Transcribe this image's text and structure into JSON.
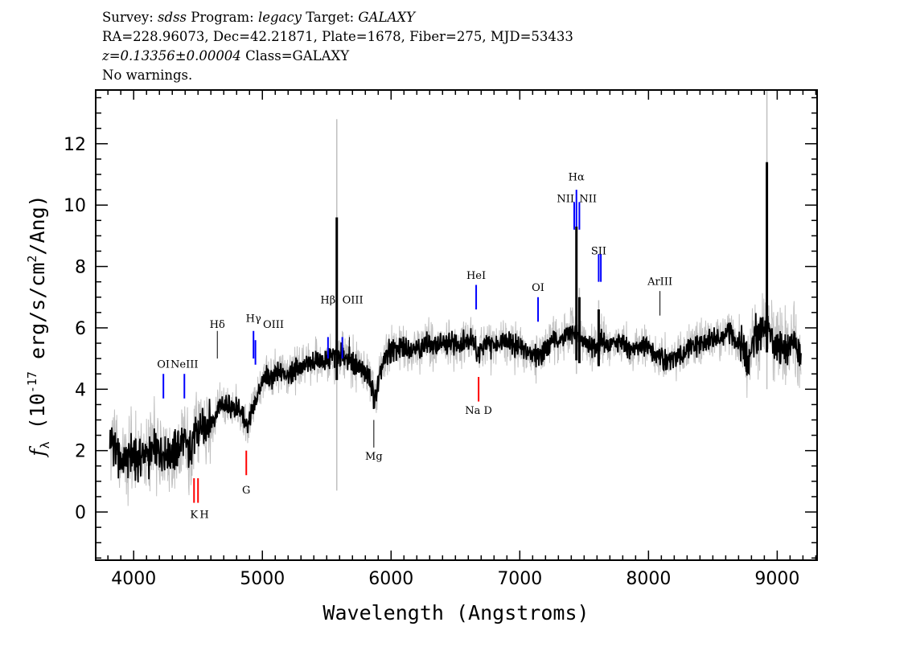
{
  "header": {
    "survey_label": "Survey:",
    "survey": "sdss",
    "program_label": "Program:",
    "program": "legacy",
    "target_label": "Target:",
    "target": "GALAXY",
    "line2": "RA=228.96073, Dec=42.21871, Plate=1678, Fiber=275, MJD=53433",
    "redshift": "z=0.13356±0.00004",
    "class": "Class=GALAXY",
    "warnings": "No warnings."
  },
  "chart_data": {
    "type": "line",
    "xlabel": "Wavelength (Angstroms)",
    "ylabel_main": "f",
    "ylabel_sub": "λ",
    "ylabel_rest": " (10",
    "ylabel_exp": "-17",
    "ylabel_units": " erg/s/cm",
    "ylabel_exp2": "2",
    "ylabel_end": "/Ang)",
    "xlim": [
      3705,
      9310
    ],
    "ylim": [
      -1.57,
      13.75
    ],
    "xticks": [
      4000,
      5000,
      6000,
      7000,
      8000,
      9000
    ],
    "yticks": [
      0,
      2,
      4,
      6,
      8,
      10,
      12
    ],
    "grid": false,
    "colors": {
      "flux": "#000000",
      "raw": "#c0c0c0",
      "emission": "#0000ff",
      "absorption": "#ff0000",
      "other": "#000000"
    },
    "flux_wavelength_start": 3825,
    "flux_wavelength_step": 50,
    "flux": [
      2.4,
      1.8,
      1.6,
      1.9,
      1.7,
      1.9,
      1.8,
      2.0,
      2.1,
      1.9,
      2.0,
      2.2,
      2.1,
      2.4,
      2.7,
      3.0,
      3.1,
      3.5,
      3.4,
      3.4,
      3.4,
      2.8,
      3.2,
      4.0,
      4.4,
      4.3,
      4.5,
      4.6,
      4.5,
      4.8,
      4.7,
      4.8,
      5.0,
      4.8,
      5.0,
      5.1,
      5.1,
      5.0,
      4.8,
      4.6,
      4.4,
      3.6,
      4.6,
      5.2,
      5.3,
      5.3,
      5.4,
      5.4,
      5.3,
      5.5,
      5.4,
      5.5,
      5.4,
      5.5,
      5.5,
      5.6,
      5.8,
      5.1,
      5.4,
      5.4,
      5.5,
      5.8,
      5.5,
      5.4,
      5.3,
      5.2,
      5.1,
      5.2,
      5.4,
      5.7,
      5.6,
      5.8,
      5.8,
      5.6,
      5.5,
      5.4,
      5.6,
      5.4,
      5.5,
      5.5,
      5.3,
      5.3,
      5.4,
      5.4,
      5.2,
      5.1,
      4.9,
      4.9,
      5.0,
      5.2,
      5.3,
      5.4,
      5.5,
      5.6,
      5.7,
      5.6,
      5.8,
      5.7,
      5.4,
      4.8,
      5.8,
      6.0,
      6.0,
      5.6,
      5.5,
      5.4,
      5.6,
      5.1
    ],
    "peaks": [
      {
        "wavelength": 5578,
        "flux": 9.6,
        "raw_max": 12.8,
        "raw_min": 0.7
      },
      {
        "wavelength": 7440,
        "flux": 9.3,
        "raw_max": 9.6,
        "raw_min": 4.5
      },
      {
        "wavelength": 7463,
        "flux": 7.0,
        "raw_max": 7.3,
        "raw_min": 5.0
      },
      {
        "wavelength": 7613,
        "flux": 6.6,
        "raw_max": 6.9,
        "raw_min": 5.0
      },
      {
        "wavelength": 8920,
        "flux": 11.4,
        "raw_max": 13.75,
        "raw_min": 4.0
      }
    ],
    "lines": [
      {
        "label": "OI",
        "wavelength": 4231,
        "type": "emission",
        "y0": 3.7,
        "y1": 4.5,
        "label_y": 4.7,
        "anchor": "middle"
      },
      {
        "label": "NeIII",
        "wavelength": 4394,
        "type": "emission",
        "y0": 3.7,
        "y1": 4.5,
        "label_y": 4.7,
        "anchor": "middle"
      },
      {
        "label": "K",
        "wavelength": 4469,
        "type": "absorption",
        "y0": 0.3,
        "y1": 1.1,
        "label_y": -0.2,
        "anchor": "middle"
      },
      {
        "label": "H",
        "wavelength": 4500,
        "type": "absorption",
        "y0": 0.3,
        "y1": 1.1,
        "label_y": -0.2,
        "anchor": "middle"
      },
      {
        "label": "Hδ",
        "wavelength": 4650,
        "type": "other",
        "y0": 5.0,
        "y1": 5.9,
        "label_y": 6.0,
        "anchor": "middle"
      },
      {
        "label": "G",
        "wavelength": 4875,
        "type": "absorption",
        "y0": 1.2,
        "y1": 2.0,
        "label_y": 0.6,
        "anchor": "middle"
      },
      {
        "label": "Hγ",
        "wavelength": 4931,
        "type": "emission",
        "y0": 5.0,
        "y1": 5.9,
        "label_y": 6.2,
        "anchor": "middle"
      },
      {
        "label": "OIII",
        "wavelength": 4946,
        "type": "emission",
        "y0": 4.8,
        "y1": 5.6,
        "label_y": 6.0,
        "anchor": "start"
      },
      {
        "label": "Hβ",
        "wavelength": 5510,
        "type": "emission",
        "y0": 5.0,
        "y1": 5.7,
        "label_y": 6.8,
        "anchor": "middle"
      },
      {
        "label": "OIII",
        "wavelength": 5621,
        "type": "emission",
        "y0": 5.0,
        "y1": 5.7,
        "label_y": 6.8,
        "anchor": "start"
      },
      {
        "label": "",
        "wavelength": 5676,
        "type": "other",
        "y0": 5.0,
        "y1": 5.7,
        "label_y": 6.8,
        "anchor": "middle"
      },
      {
        "label": "Mg",
        "wavelength": 5866,
        "type": "other",
        "y0": 2.1,
        "y1": 3.0,
        "label_y": 1.7,
        "anchor": "middle"
      },
      {
        "label": "HeI",
        "wavelength": 6661,
        "type": "emission",
        "y0": 6.6,
        "y1": 7.4,
        "label_y": 7.6,
        "anchor": "middle"
      },
      {
        "label": "Na D",
        "wavelength": 6680,
        "type": "absorption",
        "y0": 3.6,
        "y1": 4.4,
        "label_y": 3.2,
        "anchor": "middle"
      },
      {
        "label": "OI",
        "wavelength": 7142,
        "type": "emission",
        "y0": 6.2,
        "y1": 7.0,
        "label_y": 7.2,
        "anchor": "middle"
      },
      {
        "label": "NII",
        "wavelength": 7423,
        "type": "emission",
        "y0": 9.2,
        "y1": 10.1,
        "label_y": 10.1,
        "anchor": "end"
      },
      {
        "label": "Hα",
        "wavelength": 7440,
        "type": "emission",
        "y0": 9.3,
        "y1": 10.5,
        "label_y": 10.8,
        "anchor": "middle"
      },
      {
        "label": "NII",
        "wavelength": 7463,
        "type": "emission",
        "y0": 9.2,
        "y1": 10.1,
        "label_y": 10.1,
        "anchor": "start"
      },
      {
        "label": "SII",
        "wavelength": 7613,
        "type": "emission",
        "y0": 7.5,
        "y1": 8.4,
        "label_y": 8.4,
        "anchor": "middle"
      },
      {
        "label": "",
        "wavelength": 7630,
        "type": "emission",
        "y0": 7.5,
        "y1": 8.4,
        "label_y": 8.4,
        "anchor": "middle"
      },
      {
        "label": "ArIII",
        "wavelength": 8089,
        "type": "other",
        "y0": 6.4,
        "y1": 7.2,
        "label_y": 7.4,
        "anchor": "middle"
      }
    ]
  }
}
